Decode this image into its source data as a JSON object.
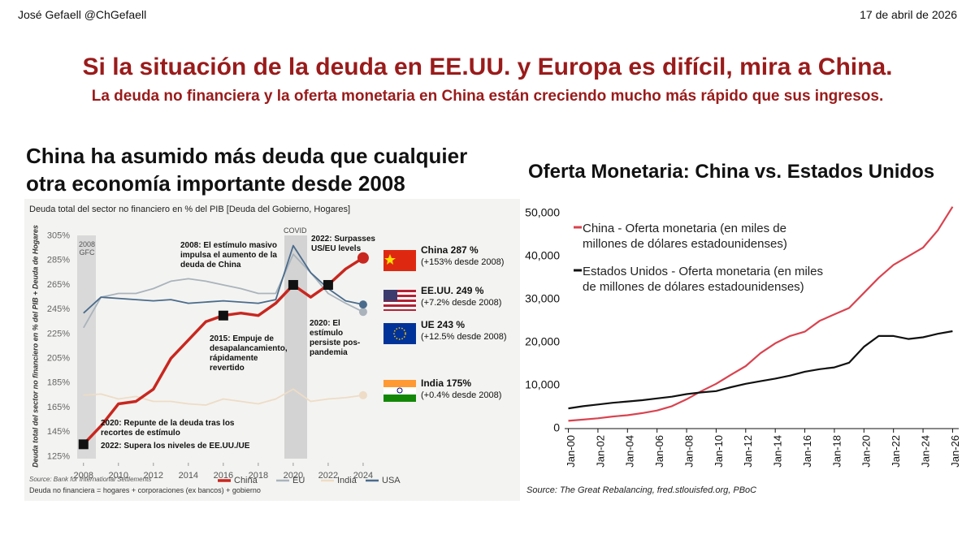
{
  "header": {
    "author": "José Gefaell @ChGefaell",
    "date": "17 de abril de 2026",
    "title": "Si la situación de la deuda en EE.UU. y Europa es difícil, mira a China.",
    "subtitle": "La deuda no financiera y la oferta monetaria en China están creciendo mucho más rápido que sus ingresos."
  },
  "chart_data": [
    {
      "type": "line",
      "title": "China ha asumido más deuda que cualquier otra economía importante desde 2008",
      "subtitle": "Deuda total del sector no financiero en % del PIB [Deuda del Gobierno, Hogares]",
      "ylabel": "Deuda total del sector no financiero en % del PIB + Deuda de Hogares",
      "x": [
        2008,
        2009,
        2010,
        2011,
        2012,
        2013,
        2014,
        2015,
        2016,
        2017,
        2018,
        2019,
        2020,
        2021,
        2022,
        2023,
        2024
      ],
      "xlim": [
        2007.5,
        2024.7
      ],
      "xticks": [
        2008,
        2010,
        2012,
        2014,
        2016,
        2018,
        2020,
        2022,
        2024
      ],
      "ylim": [
        120,
        310
      ],
      "yticks": [
        {
          "value": 125,
          "label": "125%"
        },
        {
          "value": 145,
          "label": "145%"
        },
        {
          "value": 165,
          "label": "165%"
        },
        {
          "value": 185,
          "label": "185%"
        },
        {
          "value": 205,
          "label": "205%"
        },
        {
          "value": 225,
          "label": "225%"
        },
        {
          "value": 245,
          "label": "245%"
        },
        {
          "value": 265,
          "label": "265%"
        },
        {
          "value": 285,
          "label": "285%"
        },
        {
          "value": 305,
          "label": "305%"
        }
      ],
      "series": [
        {
          "name": "China",
          "color": "#c8271f",
          "values": [
            135,
            150,
            168,
            170,
            180,
            205,
            220,
            235,
            240,
            242,
            240,
            250,
            265,
            255,
            265,
            278,
            287
          ]
        },
        {
          "name": "EU",
          "color": "#aab3bc",
          "values": [
            230,
            255,
            258,
            258,
            262,
            268,
            270,
            268,
            265,
            262,
            258,
            258,
            290,
            275,
            258,
            250,
            243
          ]
        },
        {
          "name": "India",
          "color": "#eedcc6",
          "values": [
            175,
            176,
            172,
            174,
            170,
            170,
            168,
            167,
            172,
            170,
            168,
            172,
            180,
            170,
            172,
            173,
            175
          ]
        },
        {
          "name": "USA",
          "color": "#4a6b8c",
          "values": [
            242,
            255,
            254,
            253,
            252,
            253,
            250,
            251,
            252,
            251,
            250,
            253,
            297,
            275,
            262,
            252,
            249
          ]
        }
      ],
      "annotations": [
        "2008 GFC",
        "COVID",
        "2008: El estímulo masivo impulsa el aumento de la deuda de China",
        "2022: Surpasses US/EU levels",
        "2015: Empuje de desapalancamiento, rápidamente revertido",
        "2020: El estímulo persiste pos-pandemia",
        "2020: Repunte de la deuda tras los recortes de estímulo",
        "2022: Supera los niveles de EE.UU./UE"
      ],
      "callouts": [
        {
          "label": "China 287 %",
          "note": "(+153% desde 2008)"
        },
        {
          "label": "EE.UU. 249 %",
          "note": "(+7.2% desde 2008)"
        },
        {
          "label": "UE 243 %",
          "note": "(+12.5% desde 2008)"
        },
        {
          "label": "India 175%",
          "note": "(+0.4% desde 2008)"
        }
      ],
      "source": "Source: Bank for International Settlements",
      "note": "Deuda no financiera = hogares + corporaciones (ex bancos) + gobierno"
    },
    {
      "type": "line",
      "title": "Oferta Monetaria: China vs. Estados Unidos",
      "x": [
        "2000-01",
        "2001-01",
        "2002-01",
        "2003-01",
        "2004-01",
        "2005-01",
        "2006-01",
        "2007-01",
        "2008-01",
        "2009-01",
        "2010-01",
        "2011-01",
        "2012-01",
        "2013-01",
        "2014-01",
        "2015-01",
        "2016-01",
        "2017-01",
        "2018-01",
        "2019-01",
        "2020-01",
        "2021-01",
        "2022-01",
        "2023-01",
        "2024-01",
        "2025-01",
        "2026-01"
      ],
      "xlim": [
        "1999-10",
        "2026-06"
      ],
      "xticks": [
        {
          "value": "2000-01",
          "label": "Jan-00"
        },
        {
          "value": "2002-01",
          "label": "Jan-02"
        },
        {
          "value": "2004-01",
          "label": "Jan-04"
        },
        {
          "value": "2006-01",
          "label": "Jan-06"
        },
        {
          "value": "2008-01",
          "label": "Jan-08"
        },
        {
          "value": "2010-01",
          "label": "Jan-10"
        },
        {
          "value": "2012-01",
          "label": "Jan-12"
        },
        {
          "value": "2014-01",
          "label": "Jan-14"
        },
        {
          "value": "2016-01",
          "label": "Jan-16"
        },
        {
          "value": "2018-01",
          "label": "Jan-18"
        },
        {
          "value": "2020-01",
          "label": "Jan-20"
        },
        {
          "value": "2022-01",
          "label": "Jan-22"
        },
        {
          "value": "2024-01",
          "label": "Jan-24"
        },
        {
          "value": "2026-01",
          "label": "Jan-26"
        }
      ],
      "ylim": [
        0,
        52000
      ],
      "yticks": [
        0,
        {
          "value": 10000,
          "label": "10,000"
        },
        {
          "value": 20000,
          "label": "20,000"
        },
        {
          "value": 30000,
          "label": "30,000"
        },
        {
          "value": 40000,
          "label": "40,000"
        },
        {
          "value": 50000,
          "label": "50,000"
        }
      ],
      "series": [
        {
          "name": "China - Oferta monetaria (en miles de millones de dólares estadounidenses)",
          "color": "#d9434f",
          "values": [
            1800,
            2100,
            2400,
            2800,
            3100,
            3600,
            4200,
            5200,
            6800,
            8700,
            10400,
            12500,
            14500,
            17500,
            19800,
            21500,
            22500,
            25000,
            26500,
            28000,
            31500,
            35000,
            38000,
            40000,
            42000,
            46000,
            51500
          ]
        },
        {
          "name": "Estados Unidos - Oferta monetaria (en miles de millones de dólares estadounidenses)",
          "color": "#111111",
          "values": [
            4700,
            5200,
            5600,
            6000,
            6300,
            6600,
            7000,
            7400,
            8000,
            8400,
            8700,
            9600,
            10400,
            11000,
            11600,
            12300,
            13200,
            13800,
            14200,
            15300,
            19000,
            21500,
            21500,
            20800,
            21200,
            22000,
            22600
          ]
        }
      ],
      "source": "Source: The Great Rebalancing, fred.stlouisfed.org, PBoC"
    }
  ]
}
